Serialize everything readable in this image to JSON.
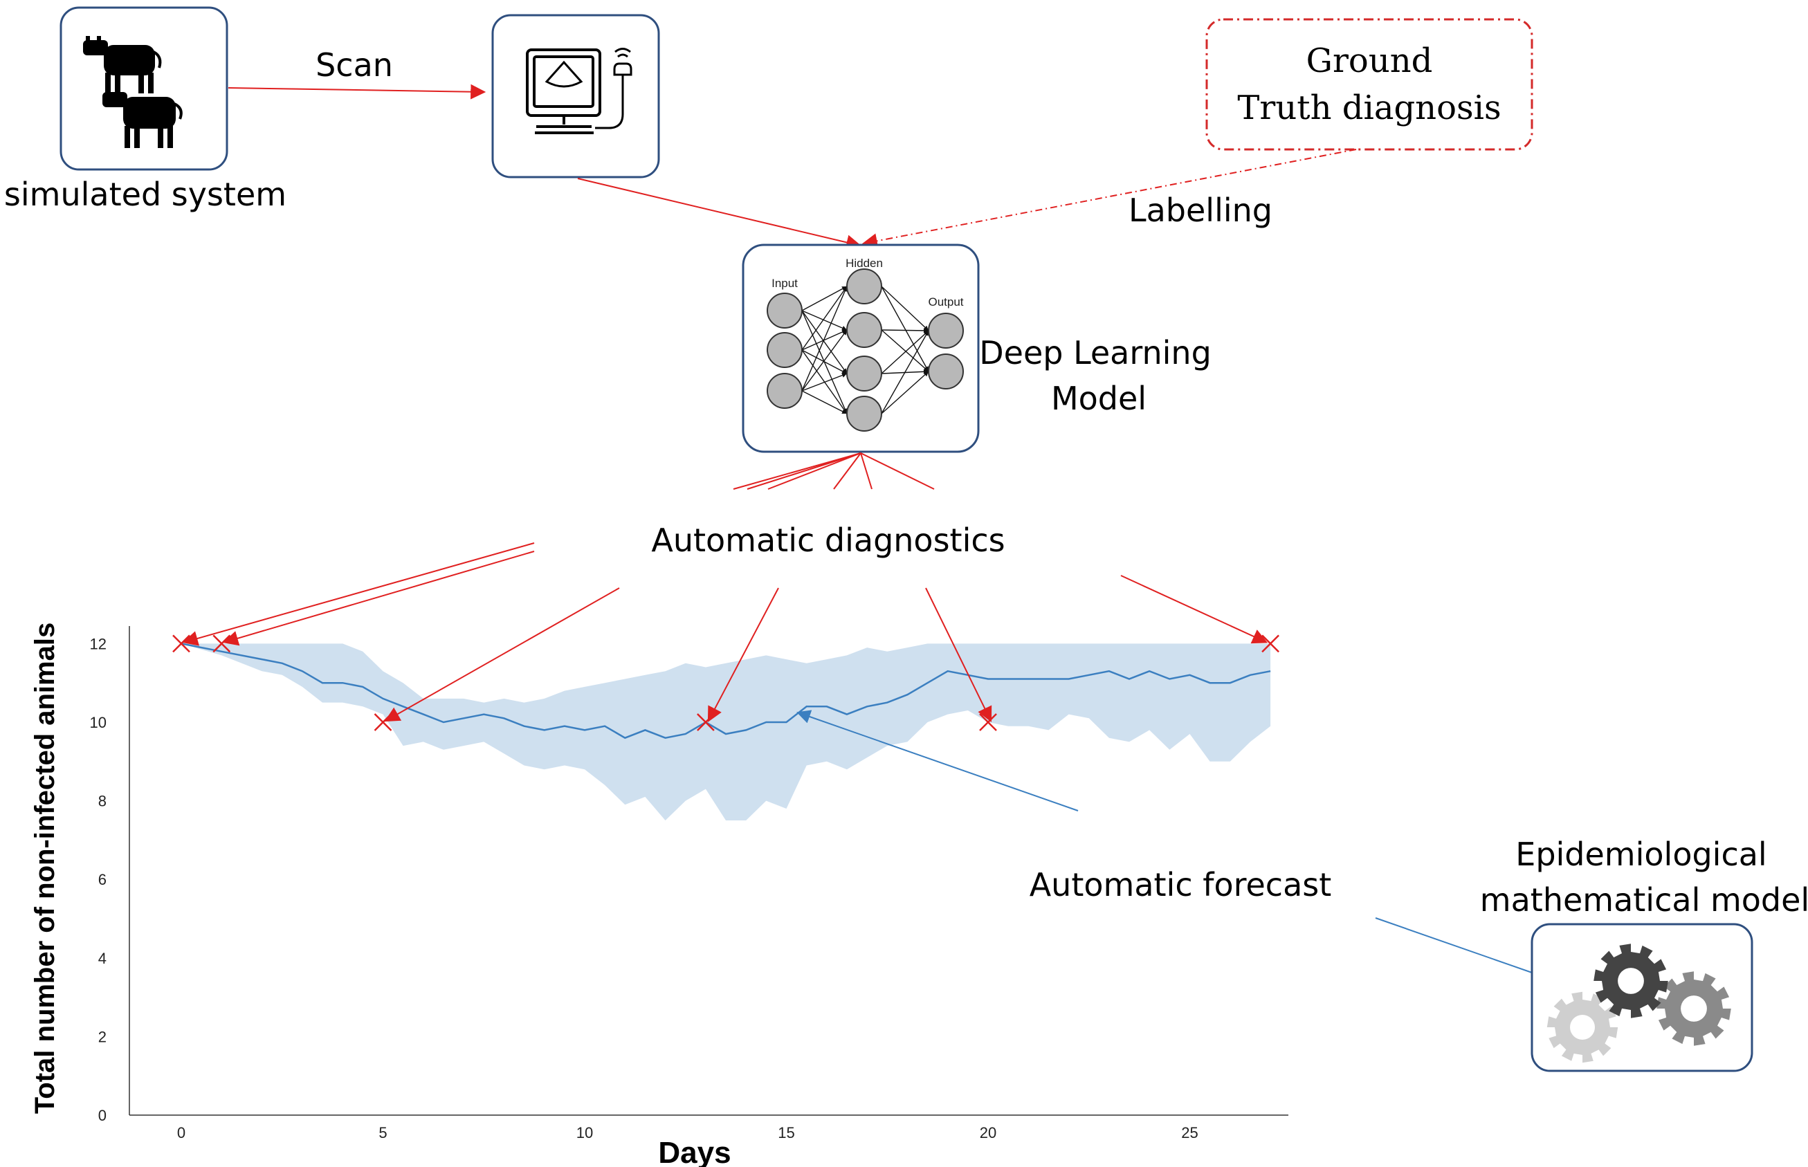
{
  "labels": {
    "simulated_system": "simulated system",
    "scan": "Scan",
    "ground_truth_line1": "Ground",
    "ground_truth_line2": "Truth diagnosis",
    "labelling": "Labelling",
    "deep_learning_line1": "Deep Learning",
    "deep_learning_line2": "Model",
    "automatic_diagnostics": "Automatic diagnostics",
    "automatic_forecast": "Automatic forecast",
    "epi_model_line1": "Epidemiological",
    "epi_model_line2": "mathematical model"
  },
  "neural_net": {
    "input_label": "Input",
    "hidden_label": "Hidden",
    "output_label": "Output"
  },
  "icons": {
    "cows": "cow-silhouettes-icon",
    "scanner": "ultrasound-scanner-icon",
    "neural_net": "neural-network-icon",
    "gears": "gears-icon"
  },
  "colors": {
    "box_border": "#2f4f7f",
    "red_arrow": "#e02020",
    "ground_truth_border": "#d42a2a",
    "forecast_line": "#3b7fc0",
    "band_fill": "#cfe0ef"
  },
  "chart_data": {
    "type": "line",
    "xlabel": "Days",
    "ylabel": "Total number of non-infected animals",
    "xlim": [
      -1.3,
      27.6
    ],
    "ylim": [
      0,
      12.5
    ],
    "x_ticks": [
      0,
      5,
      10,
      15,
      20,
      25
    ],
    "y_ticks": [
      0,
      2,
      4,
      6,
      8,
      10,
      12
    ],
    "grid": false,
    "series": [
      {
        "kind": "mean",
        "x": [
          0,
          1,
          2,
          2.5,
          3,
          3.5,
          4,
          4.5,
          5,
          5.5,
          6,
          6.5,
          7,
          7.5,
          8,
          8.5,
          9,
          9.5,
          10,
          10.5,
          11,
          11.5,
          12,
          12.5,
          13,
          13.5,
          14,
          14.5,
          15,
          15.5,
          16,
          16.5,
          17,
          17.5,
          18,
          18.5,
          19,
          19.5,
          20,
          20.5,
          21,
          21.5,
          22,
          22.5,
          23,
          23.5,
          24,
          24.5,
          25,
          25.5,
          26,
          26.5,
          27
        ],
        "y": [
          12,
          11.8,
          11.6,
          11.5,
          11.3,
          11,
          11,
          10.9,
          10.6,
          10.4,
          10.2,
          10,
          10.1,
          10.2,
          10.1,
          9.9,
          9.8,
          9.9,
          9.8,
          9.9,
          9.6,
          9.8,
          9.6,
          9.7,
          10,
          9.7,
          9.8,
          10,
          10,
          10.4,
          10.4,
          10.2,
          10.4,
          10.5,
          10.7,
          11,
          11.3,
          11.2,
          11.1,
          11.1,
          11.1,
          11.1,
          11.1,
          11.2,
          11.3,
          11.1,
          11.3,
          11.1,
          11.2,
          11,
          11,
          11.2,
          11.3
        ]
      },
      {
        "kind": "band_upper",
        "x": [
          0,
          1,
          2,
          3,
          3.5,
          4,
          4.5,
          5,
          5.5,
          6,
          6.5,
          7,
          7.5,
          8,
          8.5,
          9,
          9.5,
          10,
          10.5,
          11,
          11.5,
          12,
          12.5,
          13,
          13.5,
          14,
          14.5,
          15,
          15.5,
          16,
          16.5,
          17,
          17.5,
          18,
          18.5,
          19,
          19.5,
          20,
          21,
          22,
          23,
          24,
          25,
          26,
          27
        ],
        "y": [
          12,
          12,
          12,
          12,
          12,
          12,
          11.8,
          11.3,
          11,
          10.6,
          10.6,
          10.6,
          10.5,
          10.6,
          10.5,
          10.6,
          10.8,
          10.9,
          11,
          11.1,
          11.2,
          11.3,
          11.5,
          11.4,
          11.5,
          11.6,
          11.7,
          11.6,
          11.5,
          11.6,
          11.7,
          11.9,
          11.8,
          11.9,
          12,
          12,
          12,
          12,
          12,
          12,
          12,
          12,
          12,
          12,
          12
        ]
      },
      {
        "kind": "band_lower",
        "x": [
          0,
          1,
          2,
          2.5,
          3,
          3.5,
          4,
          4.5,
          5,
          5.5,
          6,
          6.5,
          7,
          7.5,
          8,
          8.5,
          9,
          9.5,
          10,
          10.5,
          11,
          11.5,
          12,
          12.5,
          13,
          13.5,
          14,
          14.5,
          15,
          15.5,
          16,
          16.5,
          17,
          17.5,
          18,
          18.5,
          19,
          19.5,
          20,
          20.5,
          21,
          21.5,
          22,
          22.5,
          23,
          23.5,
          24,
          24.5,
          25,
          25.5,
          26,
          26.5,
          27
        ],
        "y": [
          12,
          11.7,
          11.3,
          11.2,
          10.9,
          10.5,
          10.5,
          10.4,
          10.2,
          9.4,
          9.5,
          9.3,
          9.4,
          9.5,
          9.2,
          8.9,
          8.8,
          8.9,
          8.8,
          8.4,
          7.9,
          8.1,
          7.5,
          8,
          8.3,
          7.5,
          7.5,
          8,
          7.8,
          8.9,
          9,
          8.8,
          9.1,
          9.4,
          9.5,
          10,
          10.2,
          10.3,
          10,
          9.9,
          9.9,
          9.8,
          10.2,
          10.1,
          9.6,
          9.5,
          9.8,
          9.3,
          9.7,
          9,
          9,
          9.5,
          9.9
        ]
      },
      {
        "kind": "diagnostic_markers",
        "x": [
          0,
          1,
          5,
          13,
          20,
          27
        ],
        "y": [
          12,
          12,
          10,
          10,
          10,
          12
        ]
      }
    ]
  }
}
